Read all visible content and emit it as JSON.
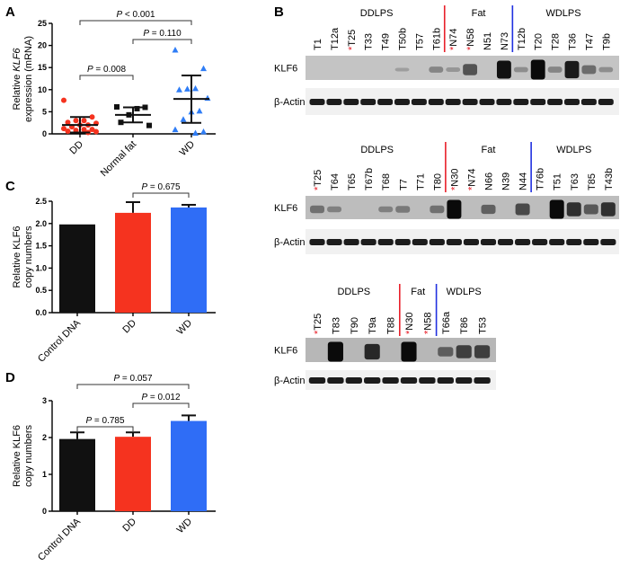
{
  "chart_data": [
    {
      "panel": "A",
      "type": "scatter",
      "ylabel": {
        "pre": "Relative ",
        "gene": "KLF6",
        "line2": "expression (mRNA)"
      },
      "ylim": [
        0,
        25
      ],
      "yticks": [
        "0",
        "5",
        "10",
        "15",
        "20",
        "25"
      ],
      "categories": [
        "DD",
        "Normal fat",
        "WD"
      ],
      "colors": [
        "#f5331f",
        "#111111",
        "#2f7df6"
      ],
      "markers": [
        "circle",
        "square",
        "triangle"
      ],
      "series": [
        {
          "values": [
            7.6,
            3.8,
            3.0,
            3.0,
            2.6,
            2.4,
            2.0,
            2.0,
            1.6,
            1.2,
            1.0,
            1.0,
            0.8,
            0.6,
            0.5,
            0.3
          ],
          "mean": 2.0,
          "sd_low": 0.3,
          "sd_high": 3.8
        },
        {
          "values": [
            6.1,
            6.0,
            5.7,
            4.3,
            2.6,
            1.9
          ],
          "mean": 4.3,
          "sd_low": 2.6,
          "sd_high": 6.0
        },
        {
          "values": [
            19.0,
            14.8,
            10.3,
            10.2,
            10.0,
            8.1,
            5.2,
            5.0,
            3.3,
            1.0,
            0.5,
            0.2
          ],
          "mean": 7.9,
          "sd_low": 2.5,
          "sd_high": 13.2
        }
      ],
      "comparisons": [
        {
          "from": 0,
          "to": 1,
          "label": "P = 0.008"
        },
        {
          "from": 1,
          "to": 2,
          "label": "P = 0.110"
        },
        {
          "from": 0,
          "to": 2,
          "label": "P < 0.001"
        }
      ]
    },
    {
      "panel": "C",
      "type": "bar",
      "ylabel": {
        "line1": "Relative KLF6",
        "line2": "copy numbers"
      },
      "ylim": [
        0,
        2.5
      ],
      "yticks": [
        "0.0",
        "0.5",
        "1.0",
        "1.5",
        "2.0",
        "2.5"
      ],
      "categories": [
        "Control DNA",
        "DD",
        "WD"
      ],
      "colors": [
        "#111111",
        "#f5331f",
        "#2f6df6"
      ],
      "values": [
        1.98,
        2.24,
        2.36
      ],
      "errors": [
        0,
        0.24,
        0.06
      ],
      "comparisons": [
        {
          "from": 1,
          "to": 2,
          "label": "P = 0.675"
        }
      ]
    },
    {
      "panel": "D",
      "type": "bar",
      "ylabel": {
        "line1": "Relative KLF6",
        "line2": "copy numbers"
      },
      "ylim": [
        0,
        3
      ],
      "yticks": [
        "0",
        "1",
        "2",
        "3"
      ],
      "categories": [
        "Control DNA",
        "DD",
        "WD"
      ],
      "colors": [
        "#111111",
        "#f5331f",
        "#2f6df6"
      ],
      "values": [
        1.96,
        2.02,
        2.45
      ],
      "errors": [
        0.18,
        0.12,
        0.15
      ],
      "comparisons": [
        {
          "from": 0,
          "to": 1,
          "label": "P = 0.785"
        },
        {
          "from": 1,
          "to": 2,
          "label": "P = 0.012"
        },
        {
          "from": 0,
          "to": 2,
          "label": "P = 0.057"
        }
      ]
    }
  ],
  "blots": {
    "panel": "B",
    "row_labels": {
      "klf6": "KLF6",
      "actin": "β-Actin"
    },
    "group_labels": [
      "DDLPS",
      "Fat",
      "WDLPS"
    ],
    "divider_colors": [
      "#e8202a",
      "#2030e0"
    ],
    "marker_color": "#e8202a",
    "blocks": [
      {
        "lanes": [
          {
            "label": "T1",
            "klf6": 0
          },
          {
            "label": "T12a",
            "klf6": 0
          },
          {
            "label": "T25",
            "marked": true,
            "klf6": 0
          },
          {
            "label": "T33",
            "klf6": 0
          },
          {
            "label": "T49",
            "klf6": 0
          },
          {
            "label": "T50b",
            "klf6": 0.05
          },
          {
            "label": "T57",
            "klf6": 0
          },
          {
            "label": "T61b",
            "klf6": 0.2
          },
          {
            "label": "N74",
            "marked": true,
            "klf6": 0.1
          },
          {
            "label": "N58",
            "marked": true,
            "klf6": 0.5
          },
          {
            "label": "N51",
            "klf6": 0
          },
          {
            "label": "N73",
            "klf6": 0.9
          },
          {
            "label": "T12b",
            "klf6": 0.15
          },
          {
            "label": "T20",
            "klf6": 1.0
          },
          {
            "label": "T28",
            "klf6": 0.2
          },
          {
            "label": "T36",
            "klf6": 0.85
          },
          {
            "label": "T47",
            "klf6": 0.35
          },
          {
            "label": "T9b",
            "klf6": 0.15
          }
        ],
        "groups": [
          8,
          4,
          6
        ]
      },
      {
        "lanes": [
          {
            "label": "T25",
            "marked": true,
            "klf6": 0.3
          },
          {
            "label": "T64",
            "klf6": 0.2
          },
          {
            "label": "T65",
            "klf6": 0
          },
          {
            "label": "T67b",
            "klf6": 0
          },
          {
            "label": "T68",
            "klf6": 0.2
          },
          {
            "label": "T7",
            "klf6": 0.25
          },
          {
            "label": "T71",
            "klf6": 0
          },
          {
            "label": "T80",
            "klf6": 0.3
          },
          {
            "label": "N30",
            "marked": true,
            "klf6": 1.0
          },
          {
            "label": "N74",
            "marked": true,
            "klf6": 0
          },
          {
            "label": "N66",
            "klf6": 0.4
          },
          {
            "label": "N39",
            "klf6": 0
          },
          {
            "label": "N44",
            "klf6": 0.55
          },
          {
            "label": "T76b",
            "klf6": 0
          },
          {
            "label": "T51",
            "klf6": 1.0
          },
          {
            "label": "T63",
            "klf6": 0.7
          },
          {
            "label": "T85",
            "klf6": 0.45
          },
          {
            "label": "T43b",
            "klf6": 0.7
          }
        ],
        "groups": [
          8,
          5,
          5
        ]
      },
      {
        "lanes": [
          {
            "label": "T25",
            "marked": true,
            "klf6": 0
          },
          {
            "label": "T83",
            "klf6": 1.0
          },
          {
            "label": "T90",
            "klf6": 0
          },
          {
            "label": "T9a",
            "klf6": 0.75
          },
          {
            "label": "T88",
            "klf6": 0
          },
          {
            "label": "N30",
            "marked": true,
            "klf6": 1.0
          },
          {
            "label": "N58",
            "marked": true,
            "klf6": 0
          },
          {
            "label": "T66a",
            "klf6": 0.4
          },
          {
            "label": "T86",
            "klf6": 0.6
          },
          {
            "label": "T53",
            "klf6": 0.6
          }
        ],
        "groups": [
          5,
          2,
          3
        ]
      }
    ]
  }
}
